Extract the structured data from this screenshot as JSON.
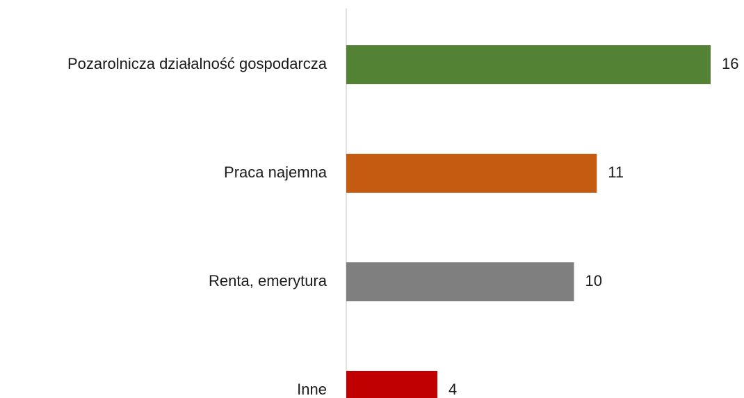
{
  "chart_data": {
    "type": "bar",
    "orientation": "horizontal",
    "categories": [
      "Pozarolnicza działalność gospodarcza",
      "Praca najemna",
      "Renta, emerytura",
      "Inne"
    ],
    "values": [
      16,
      11,
      10,
      4
    ],
    "colors": [
      "#548235",
      "#c55a11",
      "#7f7f7f",
      "#c00000"
    ]
  }
}
